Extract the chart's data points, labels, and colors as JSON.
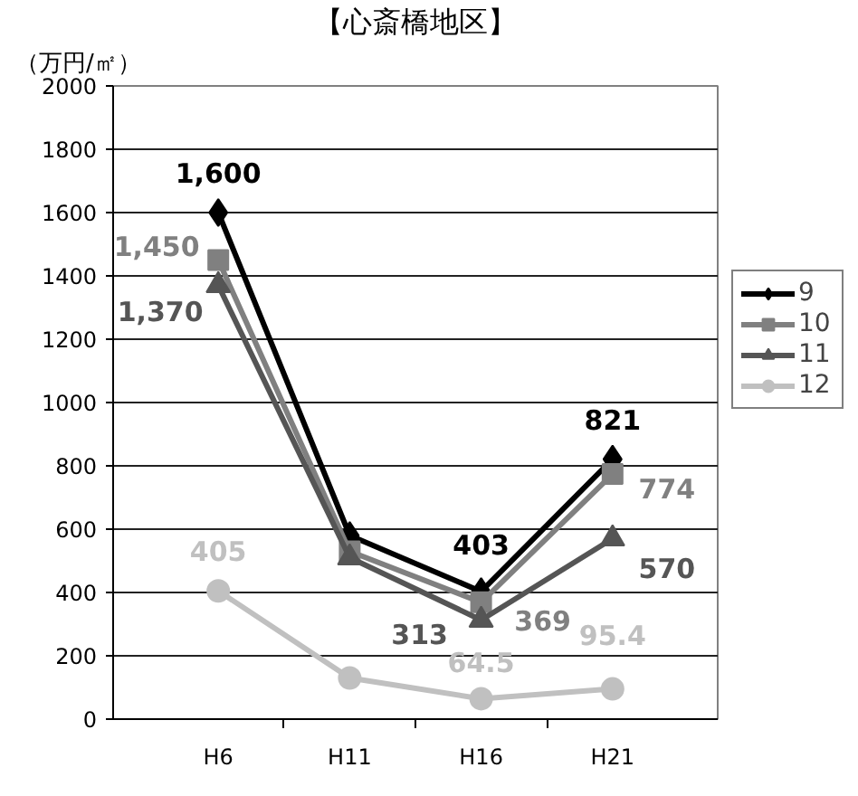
{
  "chart_data": {
    "type": "line",
    "title": "【心斎橋地区】",
    "ylabel": "（万円/㎡）",
    "categories": [
      "H6",
      "H11",
      "H16",
      "H21"
    ],
    "series": [
      {
        "name": "9",
        "color": "#000000",
        "marker": "diamond",
        "values": [
          1600,
          580,
          403,
          821
        ],
        "value_labels": [
          "1,600",
          null,
          "403",
          "821"
        ]
      },
      {
        "name": "10",
        "color": "#808080",
        "marker": "square",
        "values": [
          1450,
          530,
          369,
          774
        ],
        "value_labels": [
          "1,450",
          null,
          "369",
          "774"
        ]
      },
      {
        "name": "11",
        "color": "#555555",
        "marker": "triangle",
        "values": [
          1370,
          510,
          313,
          570
        ],
        "value_labels": [
          "1,370",
          null,
          "313",
          "570"
        ]
      },
      {
        "name": "12",
        "color": "#c0c0c0",
        "marker": "circle",
        "values": [
          405,
          130,
          64.5,
          95.4
        ],
        "value_labels": [
          "405",
          null,
          "64.5",
          "95.4"
        ]
      }
    ],
    "ylim": [
      0,
      2000
    ],
    "yticks": [
      0,
      200,
      400,
      600,
      800,
      1000,
      1200,
      1400,
      1600,
      1800,
      2000
    ],
    "grid": "y",
    "legend": "right",
    "line_style": "solid"
  }
}
